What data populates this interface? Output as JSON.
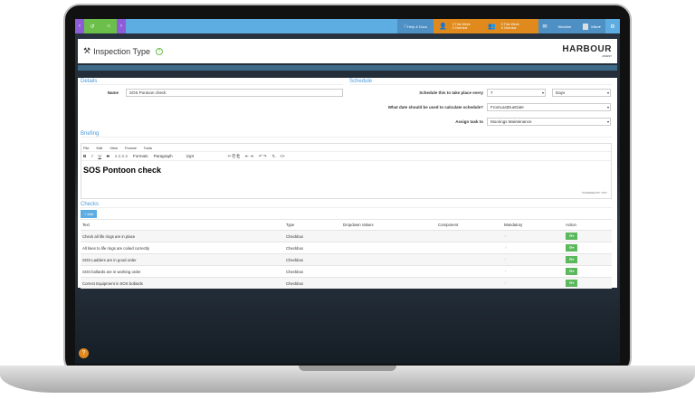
{
  "nav": {
    "help": "Help & Docs",
    "tasks_week": "0 This Week",
    "tasks_overdue": "0 Overdue",
    "team_week": "0 This Week",
    "team_overdue": "0 Overdue",
    "weather": "Weather",
    "user": "Mike"
  },
  "header": {
    "title": "Inspection Type",
    "logo": "HARBOUR",
    "logo_sub": "ASSIST"
  },
  "details": {
    "heading": "Details",
    "name_label": "Name",
    "name_value": "SOS Pontoon check"
  },
  "schedule": {
    "heading": "Schedule",
    "every_label": "Schedule this to take place every",
    "every_value": "7",
    "unit_value": "Days",
    "date_label": "What date should be used to calculate schedule?",
    "date_value": "FromLastDueDate",
    "assign_label": "Assign task to",
    "assign_value": "Moorings Maintenance"
  },
  "briefing": {
    "heading": "Briefing",
    "menus": [
      "File",
      "Edit",
      "View",
      "Format",
      "Tools"
    ],
    "formats": "Formats",
    "paragraph": "Paragraph",
    "size": "11pt",
    "content": "SOS Pontoon check",
    "powered": "POWERED BY TINY"
  },
  "checks": {
    "heading": "Checks",
    "add": "+ Add",
    "columns": [
      "Text",
      "Type",
      "Dropdown Values",
      "Component",
      "Mandatory",
      "Action"
    ],
    "rows": [
      {
        "text": "Check all life rings are in place",
        "type": "Checkbox"
      },
      {
        "text": "All lines to life rings are coiled correctly",
        "type": "Checkbox"
      },
      {
        "text": "SOS Ladders are in good order",
        "type": "Checkbox"
      },
      {
        "text": "SOS bollards are in working order",
        "type": "Checkbox"
      },
      {
        "text": "Correct Equipment in SOS bollards",
        "type": "Checkbox"
      }
    ]
  }
}
